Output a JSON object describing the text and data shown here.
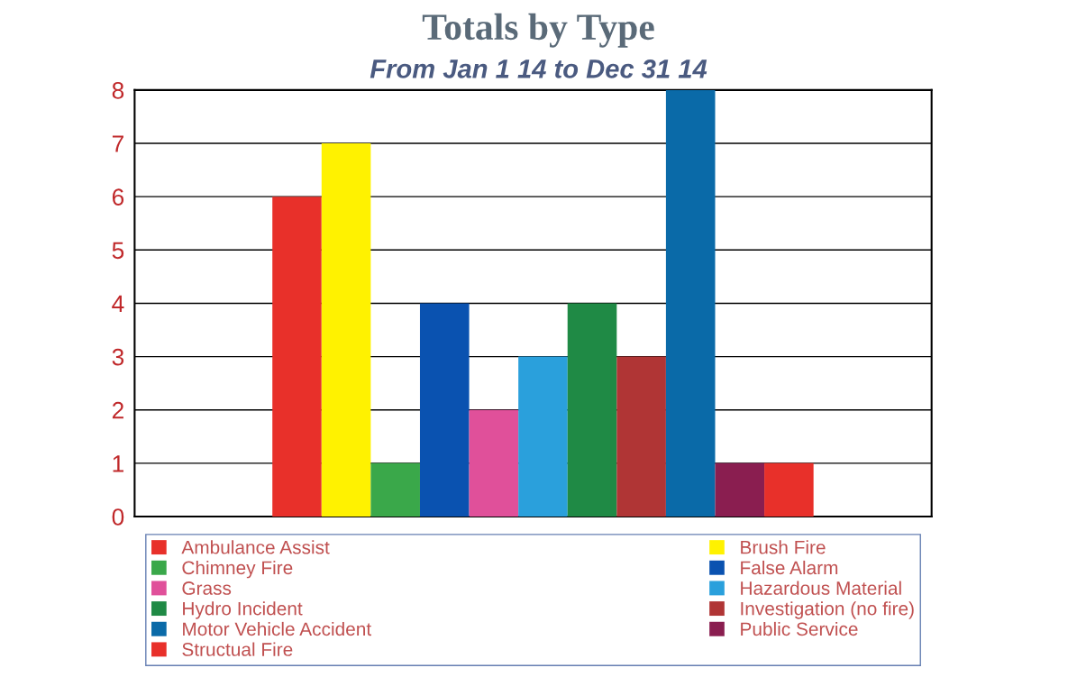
{
  "chart_data": {
    "type": "bar",
    "title": "Totals by Type",
    "subtitle": "From Jan 1 14 to Dec 31 14",
    "categories": [
      null
    ],
    "series": [
      {
        "name": "Ambulance Assist",
        "color": "#e8302a",
        "values": [
          6
        ]
      },
      {
        "name": "Brush Fire",
        "color": "#fff200",
        "values": [
          7
        ]
      },
      {
        "name": "Chimney Fire",
        "color": "#3aa84a",
        "values": [
          1
        ]
      },
      {
        "name": "False Alarm",
        "color": "#0a52b0",
        "values": [
          4
        ]
      },
      {
        "name": "Grass",
        "color": "#e0509a",
        "values": [
          2
        ]
      },
      {
        "name": "Hazardous Material",
        "color": "#2aa0dc",
        "values": [
          3
        ]
      },
      {
        "name": "Hydro Incident",
        "color": "#1f8a45",
        "values": [
          4
        ]
      },
      {
        "name": "Investigation (no fire)",
        "color": "#b03535",
        "values": [
          3
        ]
      },
      {
        "name": "Motor Vehicle Accident",
        "color": "#0a6aa8",
        "values": [
          8
        ]
      },
      {
        "name": "Public Service",
        "color": "#8a1e50",
        "values": [
          1
        ]
      },
      {
        "name": "Structual Fire",
        "color": "#e8302a",
        "values": [
          1
        ]
      }
    ],
    "ylim": [
      0,
      8
    ],
    "yticks": [
      0,
      1,
      2,
      3,
      4,
      5,
      6,
      7,
      8
    ],
    "grid": "y",
    "legend": "bottom",
    "tick_labels": "y"
  }
}
